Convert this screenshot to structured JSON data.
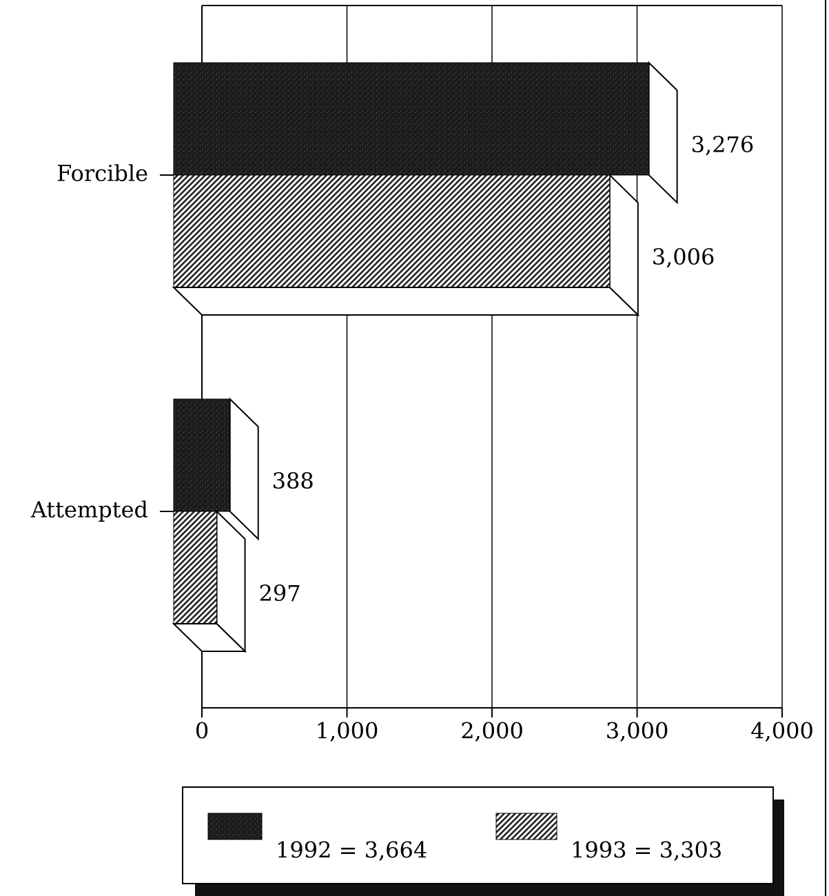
{
  "chart_data": {
    "type": "bar3d",
    "orientation": "horizontal",
    "categories": [
      "Forcible",
      "Attempted"
    ],
    "series": [
      {
        "name": "1992 = 3,664",
        "color": "#1c1c1c",
        "pattern": "speckle",
        "values": [
          3276,
          388
        ],
        "value_labels": [
          "3,276",
          "388"
        ]
      },
      {
        "name": "1993 = 3,303",
        "color": "#222222",
        "pattern": "hatch",
        "values": [
          3006,
          297
        ],
        "value_labels": [
          "3,006",
          "297"
        ]
      }
    ],
    "xlim": [
      0,
      4000
    ],
    "xticks": [
      0,
      {
        "value": 1000,
        "label": "1,000"
      },
      {
        "value": 2000,
        "label": "2,000"
      },
      {
        "value": 3000,
        "label": "3,000"
      },
      {
        "value": 4000,
        "label": "4,000"
      }
    ],
    "grid": true,
    "legend": "bottom"
  }
}
